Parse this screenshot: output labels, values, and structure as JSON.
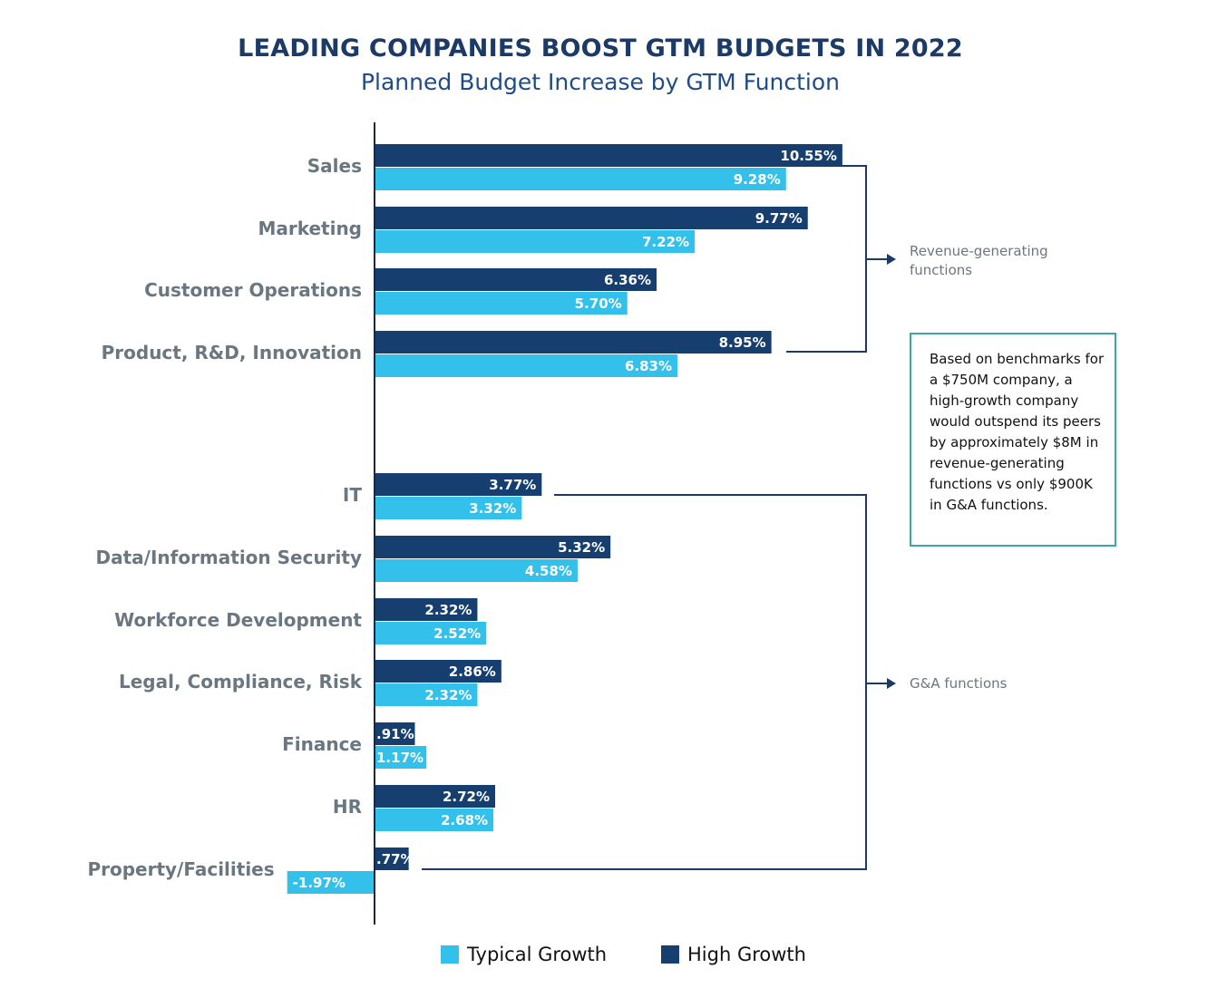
{
  "title": "LEADING COMPANIES BOOST GTM BUDGETS IN 2022",
  "subtitle": "Planned Budget Increase by GTM Function",
  "colors": {
    "typical": "#33c1ec",
    "high": "#163f70",
    "bracket": "#1b3a66",
    "note_border": "#3aa6aa",
    "category_text": "#6b7780"
  },
  "groups": {
    "revenue": "Revenue-generating functions",
    "ga": "G&A functions"
  },
  "note": "Based on benchmarks for a $750M company, a high-growth company would outspend its peers by approximately $8M in revenue-generating functions vs only $900K in G&A functions.",
  "legend": {
    "typical": "Typical Growth",
    "high": "High Growth"
  },
  "chart_data": {
    "type": "bar",
    "orientation": "horizontal",
    "title": "LEADING COMPANIES BOOST GTM BUDGETS IN 2022",
    "subtitle": "Planned Budget Increase by GTM Function",
    "categories": [
      "Sales",
      "Marketing",
      "Customer Operations",
      "Product, R&D, Innovation",
      "IT",
      "Data/Information Security",
      "Workforce Development",
      "Legal, Compliance, Risk",
      "Finance",
      "HR",
      "Property/Facilities"
    ],
    "series": [
      {
        "name": "High Growth",
        "values": [
          10.55,
          9.77,
          6.36,
          8.95,
          3.77,
          5.32,
          2.32,
          2.86,
          0.91,
          2.72,
          0.77
        ],
        "labels": [
          "10.55%",
          "9.77%",
          "6.36%",
          "8.95%",
          "3.77%",
          "5.32%",
          "2.32%",
          "2.86%",
          ".91%",
          "2.72%",
          ".77%"
        ]
      },
      {
        "name": "Typical Growth",
        "values": [
          9.28,
          7.22,
          5.7,
          6.83,
          3.32,
          4.58,
          2.52,
          2.32,
          1.17,
          2.68,
          -1.97
        ],
        "labels": [
          "9.28%",
          "7.22%",
          "5.70%",
          "6.83%",
          "3.32%",
          "4.58%",
          "2.52%",
          "2.32%",
          "1.17%",
          "2.68%",
          "-1.97%"
        ]
      }
    ],
    "legend_position": "bottom",
    "grid": false
  }
}
